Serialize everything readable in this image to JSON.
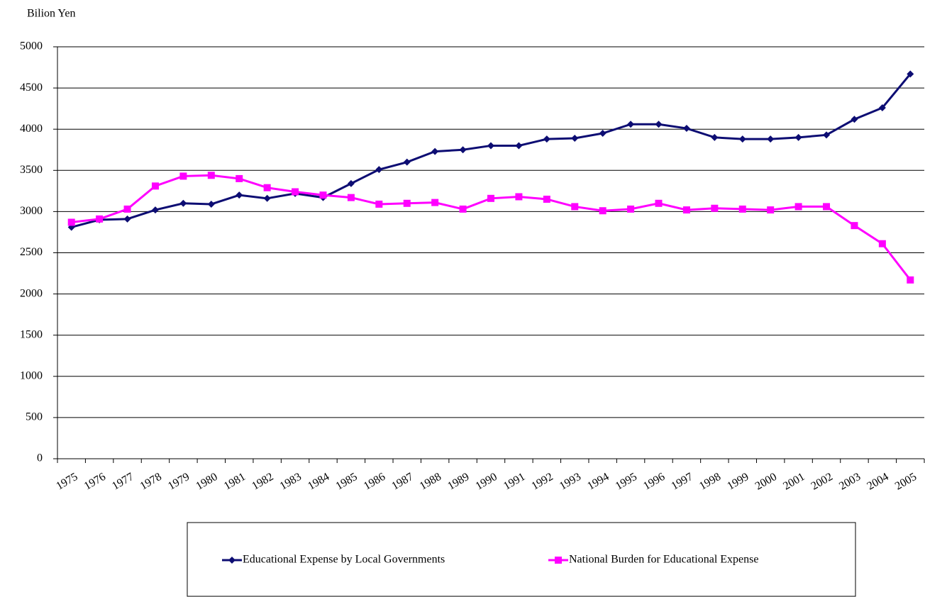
{
  "chart_data": {
    "type": "line",
    "y_label": "Bilion Yen",
    "categories": [
      "1975",
      "1976",
      "1977",
      "1978",
      "1979",
      "1980",
      "1981",
      "1982",
      "1983",
      "1984",
      "1985",
      "1986",
      "1987",
      "1988",
      "1989",
      "1990",
      "1991",
      "1992",
      "1993",
      "1994",
      "1995",
      "1996",
      "1997",
      "1998",
      "1999",
      "2000",
      "2001",
      "2002",
      "2003",
      "2004",
      "2005"
    ],
    "series": [
      {
        "name": "Educational Expense by Local Governments",
        "color": "#0d0d73",
        "marker": "diamond",
        "values": [
          2810,
          2900,
          2910,
          3020,
          3100,
          3090,
          3200,
          3160,
          3220,
          3170,
          3340,
          3510,
          3600,
          3730,
          3750,
          3800,
          3800,
          3880,
          3890,
          3950,
          4060,
          4060,
          4010,
          3900,
          3880,
          3880,
          3900,
          3930,
          4120,
          4260,
          4670
        ]
      },
      {
        "name": "National Burden for Educational Expense",
        "color": "#ff00ff",
        "marker": "square",
        "values": [
          2870,
          2910,
          3030,
          3310,
          3430,
          3440,
          3400,
          3290,
          3240,
          3200,
          3170,
          3090,
          3100,
          3110,
          3030,
          3160,
          3180,
          3150,
          3060,
          3010,
          3030,
          3100,
          3020,
          3040,
          3030,
          3020,
          3060,
          3060,
          2830,
          2610,
          2170
        ]
      }
    ],
    "ylim": [
      0,
      5000
    ],
    "yticks": [
      0,
      500,
      1000,
      1500,
      2000,
      2500,
      3000,
      3500,
      4000,
      4500,
      5000
    ],
    "grid": true,
    "legend": "bottom"
  }
}
